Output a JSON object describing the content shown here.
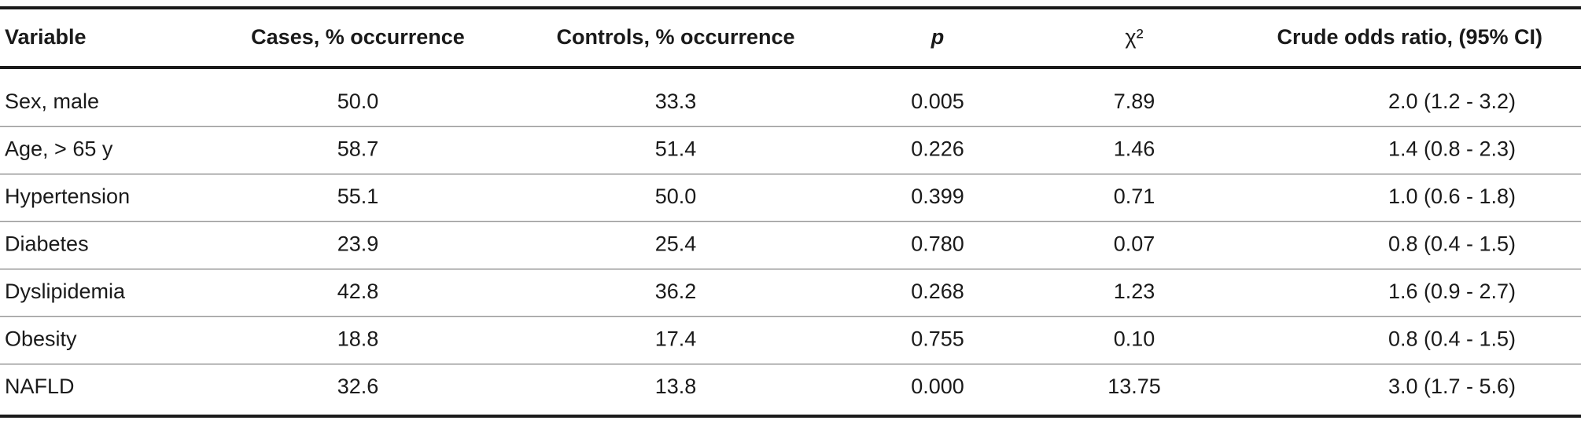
{
  "table": {
    "header": [
      "Variable",
      "Cases, % occurrence",
      "Controls, % occurrence",
      "p",
      "χ²",
      "Crude odds ratio, (95% CI)"
    ],
    "rows": [
      [
        "Sex, male",
        "50.0",
        "33.3",
        "0.005",
        "7.89",
        "2.0 (1.2 - 3.2)"
      ],
      [
        "Age, > 65 y",
        "58.7",
        "51.4",
        "0.226",
        "1.46",
        "1.4 (0.8 - 2.3)"
      ],
      [
        "Hypertension",
        "55.1",
        "50.0",
        "0.399",
        "0.71",
        "1.0 (0.6 - 1.8)"
      ],
      [
        "Diabetes",
        "23.9",
        "25.4",
        "0.780",
        "0.07",
        "0.8 (0.4 - 1.5)"
      ],
      [
        "Dyslipidemia",
        "42.8",
        "36.2",
        "0.268",
        "1.23",
        "1.6 (0.9 - 2.7)"
      ],
      [
        "Obesity",
        "18.8",
        "17.4",
        "0.755",
        "0.10",
        "0.8 (0.4 - 1.5)"
      ],
      [
        "NAFLD",
        "32.6",
        "13.8",
        "0.000",
        "13.75",
        "3.0 (1.7 - 5.6)"
      ]
    ]
  }
}
